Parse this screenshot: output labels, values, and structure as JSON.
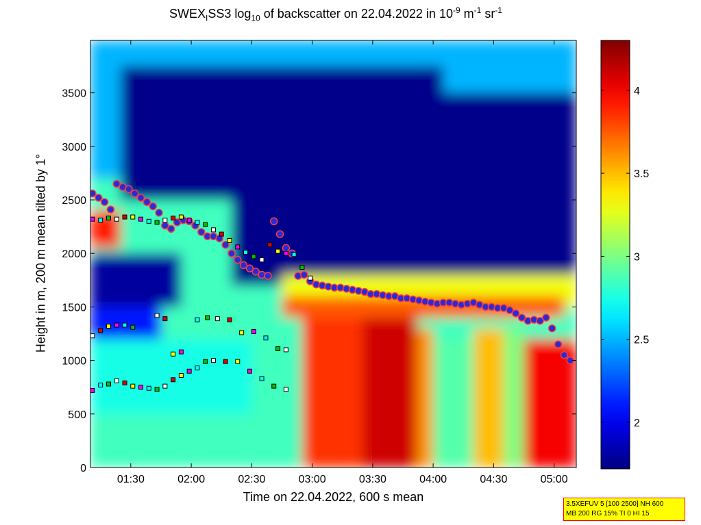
{
  "title": {
    "part1": "SWEX",
    "sub1": "I",
    "part2": "SS3 log",
    "sub2": "10",
    "part3": " of backscatter on 22.04.2022 in 10",
    "sup1": "-9",
    "part4": " m",
    "sup2": "-1",
    "part5": " sr",
    "sup3": "-1"
  },
  "info_box": {
    "line1": "3.5XEFUV 5 [100 2500] NH 600",
    "line2": "MB 200 RG 15% TI 0 HI 15"
  },
  "colors": {
    "colormap": "jet",
    "cloud_base_marker_fill": "#2b2bd6",
    "cloud_base_marker_edge": "#ff3b3b",
    "layer_marker_edge": "#000000",
    "layer_marker_fills": [
      "#ffffff",
      "#e00000",
      "#ffff00",
      "#ff00ff",
      "#00ffff",
      "#00c000"
    ]
  },
  "chart_data": {
    "type": "heatmap",
    "title": "SWEX_ISS3 log_10 of backscatter on 22.04.2022 in 10^-9 m^-1 sr^-1",
    "xlabel": "Time on 22.04.2022, 600 s mean",
    "ylabel": "Height in m, 200 m mean tilted by 1°",
    "x_ticks": [
      "01:30",
      "02:00",
      "02:30",
      "03:00",
      "03:30",
      "04:00",
      "04:30",
      "05:00"
    ],
    "xlim": [
      "01:10",
      "05:11"
    ],
    "y_ticks": [
      0,
      500,
      1000,
      1500,
      2000,
      2500,
      3000,
      3500
    ],
    "ylim": [
      0,
      3990
    ],
    "colorbar": {
      "ticks": [
        2,
        2.5,
        3,
        3.5,
        4
      ],
      "range": [
        1.72,
        4.3
      ],
      "colormap": "jet"
    },
    "grid": false,
    "regions": [
      {
        "x": [
          "01:10",
          "05:11"
        ],
        "y": [
          0,
          3990
        ],
        "value": 2.85
      },
      {
        "x": [
          "01:10",
          "05:11"
        ],
        "y": [
          2700,
          3990
        ],
        "value": 2.5
      },
      {
        "x": [
          "01:25",
          "04:05"
        ],
        "y": [
          2500,
          3750
        ],
        "value": 1.75
      },
      {
        "x": [
          "02:20",
          "05:11"
        ],
        "y": [
          1700,
          3500
        ],
        "value": 1.75
      },
      {
        "x": [
          "04:10",
          "05:11"
        ],
        "y": [
          1600,
          2700
        ],
        "value": 1.75
      },
      {
        "x": [
          "01:10",
          "01:55"
        ],
        "y": [
          1500,
          2000
        ],
        "value": 1.8
      },
      {
        "x": [
          "01:10",
          "01:45"
        ],
        "y": [
          1100,
          1500
        ],
        "value": 2.1
      },
      {
        "x": [
          "01:10",
          "02:30"
        ],
        "y": [
          500,
          1200
        ],
        "value": 2.75
      },
      {
        "x": [
          "02:45",
          "05:11"
        ],
        "y": [
          1500,
          1800
        ],
        "value": 3.3
      },
      {
        "x": [
          "02:55",
          "03:25"
        ],
        "y": [
          0,
          1500
        ],
        "value": 3.85
      },
      {
        "x": [
          "03:25",
          "03:52"
        ],
        "y": [
          0,
          1400
        ],
        "value": 4.1
      },
      {
        "x": [
          "03:52",
          "04:00"
        ],
        "y": [
          0,
          1300
        ],
        "value": 3.6
      },
      {
        "x": [
          "04:00",
          "04:20"
        ],
        "y": [
          0,
          1200
        ],
        "value": 2.9
      },
      {
        "x": [
          "04:20",
          "04:35"
        ],
        "y": [
          0,
          1300
        ],
        "value": 3.5
      },
      {
        "x": [
          "04:35",
          "04:45"
        ],
        "y": [
          0,
          1300
        ],
        "value": 3.0
      },
      {
        "x": [
          "04:45",
          "05:11"
        ],
        "y": [
          0,
          1200
        ],
        "value": 4.0
      },
      {
        "x": [
          "02:45",
          "05:05"
        ],
        "y": [
          1400,
          1600
        ],
        "value": 3.75
      },
      {
        "x": [
          "01:10",
          "01:25"
        ],
        "y": [
          2050,
          2400
        ],
        "value": 3.9
      }
    ],
    "series": [
      {
        "marker": "circle",
        "x": [
          "01:11",
          "01:14",
          "01:17",
          "01:20",
          "01:23",
          "01:26",
          "01:29",
          "01:32",
          "01:35",
          "01:38",
          "01:41",
          "01:44",
          "01:47",
          "01:50",
          "01:53",
          "01:56",
          "01:59",
          "02:02",
          "02:05",
          "02:08",
          "02:11",
          "02:14",
          "02:17",
          "02:20",
          "02:23",
          "02:26",
          "02:29",
          "02:32",
          "02:35",
          "02:38",
          "02:41",
          "02:44",
          "02:47",
          "02:50",
          "02:53",
          "02:56",
          "02:59",
          "03:02",
          "03:05",
          "03:08",
          "03:11",
          "03:14",
          "03:17",
          "03:20",
          "03:23",
          "03:26",
          "03:29",
          "03:32",
          "03:35",
          "03:38",
          "03:41",
          "03:44",
          "03:47",
          "03:50",
          "03:53",
          "03:56",
          "03:59",
          "04:02",
          "04:05",
          "04:08",
          "04:11",
          "04:14",
          "04:17",
          "04:20",
          "04:23",
          "04:26",
          "04:29",
          "04:32",
          "04:35",
          "04:38",
          "04:41",
          "04:44",
          "04:47",
          "04:50",
          "04:53",
          "04:56",
          "04:59",
          "05:02",
          "05:05",
          "05:08"
        ],
        "y": [
          2560,
          2520,
          2480,
          2410,
          2650,
          2620,
          2600,
          2560,
          2520,
          2480,
          2440,
          2380,
          2260,
          2230,
          2290,
          2310,
          2300,
          2260,
          2200,
          2160,
          2160,
          2140,
          2080,
          2000,
          1940,
          1890,
          1860,
          1830,
          1800,
          1790,
          2300,
          2180,
          2050,
          2000,
          1790,
          1800,
          1740,
          1710,
          1700,
          1690,
          1680,
          1680,
          1670,
          1660,
          1650,
          1640,
          1620,
          1620,
          1610,
          1600,
          1600,
          1580,
          1580,
          1570,
          1560,
          1550,
          1540,
          1530,
          1540,
          1540,
          1530,
          1520,
          1530,
          1540,
          1520,
          1500,
          1500,
          1490,
          1490,
          1470,
          1440,
          1400,
          1370,
          1380,
          1370,
          1400,
          1300,
          1150,
          1050,
          1000
        ]
      },
      {
        "marker": "square",
        "x": [
          "01:11",
          "01:15",
          "01:19",
          "01:23",
          "01:27",
          "01:31",
          "01:35",
          "01:39",
          "01:43",
          "01:47",
          "01:51",
          "01:55",
          "01:59",
          "02:03",
          "02:07",
          "02:11",
          "02:15",
          "02:19",
          "02:23",
          "02:27",
          "02:31",
          "02:35",
          "02:39",
          "02:43",
          "02:47",
          "02:51",
          "02:55",
          "02:59"
        ],
        "y": [
          2320,
          2310,
          2330,
          2320,
          2340,
          2340,
          2320,
          2300,
          2290,
          2310,
          2330,
          2340,
          2310,
          2290,
          2270,
          2220,
          2180,
          2120,
          2060,
          2010,
          1970,
          1940,
          2080,
          2020,
          2000,
          1990,
          1870,
          1770
        ]
      },
      {
        "marker": "square",
        "x": [
          "01:11",
          "01:15",
          "01:19",
          "01:23",
          "01:27",
          "01:31",
          "01:43",
          "01:47",
          "01:51",
          "01:55",
          "02:03",
          "02:08",
          "02:13",
          "02:19",
          "02:25",
          "02:31",
          "02:37",
          "02:43",
          "02:47"
        ],
        "y": [
          1230,
          1280,
          1320,
          1330,
          1330,
          1310,
          1420,
          1390,
          1060,
          1080,
          1380,
          1400,
          1390,
          1380,
          1260,
          1270,
          1210,
          1110,
          1100
        ]
      },
      {
        "marker": "square",
        "x": [
          "01:11",
          "01:15",
          "01:19",
          "01:23",
          "01:27",
          "01:31",
          "01:35",
          "01:39",
          "01:43",
          "01:47",
          "01:51",
          "01:55",
          "01:59",
          "02:03",
          "02:07",
          "02:11",
          "02:17",
          "02:23",
          "02:29",
          "02:35",
          "02:41",
          "02:47"
        ],
        "y": [
          720,
          770,
          780,
          810,
          790,
          760,
          750,
          740,
          730,
          760,
          820,
          860,
          900,
          930,
          990,
          1000,
          990,
          990,
          900,
          830,
          760,
          730
        ]
      }
    ]
  }
}
